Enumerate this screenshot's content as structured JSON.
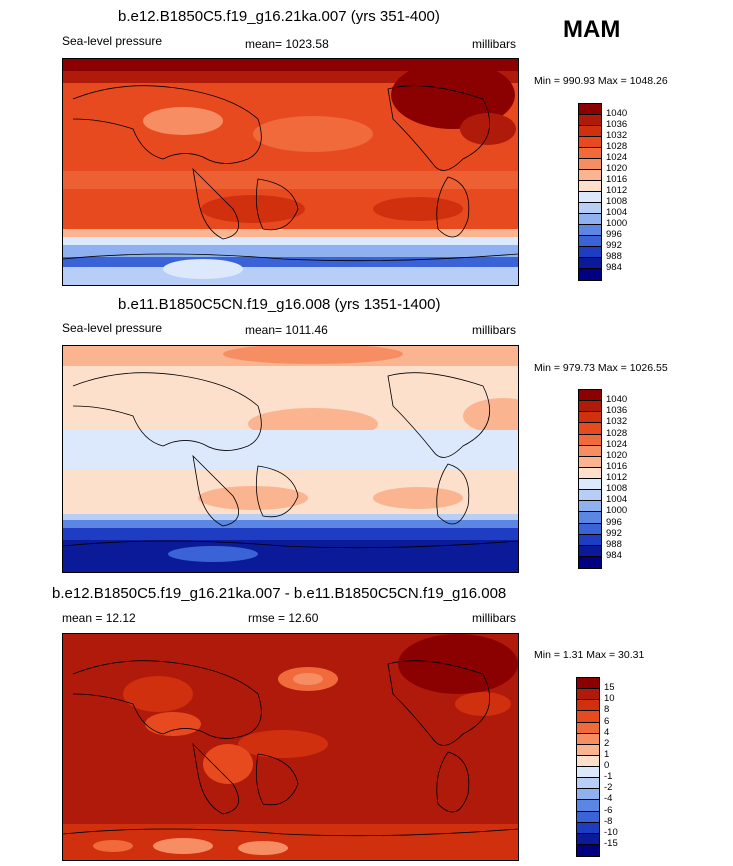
{
  "season": "MAM",
  "panels": [
    {
      "title": "b.e12.B1850C5.f19_g16.21ka.007 (yrs 351-400)",
      "left": "Sea-level pressure",
      "middle": "mean= 1023.58",
      "right": "millibars",
      "minmax": "Min = 990.93 Max = 1048.26",
      "levels": [
        "1040",
        "1036",
        "1032",
        "1028",
        "1024",
        "1020",
        "1016",
        "1012",
        "1008",
        "1004",
        "1000",
        "996",
        "992",
        "988",
        "984"
      ],
      "colors": [
        "#8b0000",
        "#b01a0a",
        "#d1300f",
        "#e84a20",
        "#f06a3c",
        "#f78e63",
        "#fab48f",
        "#fde0cc",
        "#dce8fb",
        "#b7cff6",
        "#8fb1ef",
        "#5b86e4",
        "#3a63d7",
        "#1f3dc2",
        "#0a1a99",
        "#000080"
      ]
    },
    {
      "title": "b.e11.B1850C5CN.f19_g16.008 (yrs 1351-1400)",
      "left": "Sea-level pressure",
      "middle": "mean= 1011.46",
      "right": "millibars",
      "minmax": "Min = 979.73 Max = 1026.55",
      "levels": [
        "1040",
        "1036",
        "1032",
        "1028",
        "1024",
        "1020",
        "1016",
        "1012",
        "1008",
        "1004",
        "1000",
        "996",
        "992",
        "988",
        "984"
      ],
      "colors": [
        "#8b0000",
        "#b01a0a",
        "#d1300f",
        "#e84a20",
        "#f06a3c",
        "#f78e63",
        "#fab48f",
        "#fde0cc",
        "#dce8fb",
        "#b7cff6",
        "#8fb1ef",
        "#5b86e4",
        "#3a63d7",
        "#1f3dc2",
        "#0a1a99",
        "#000080"
      ]
    },
    {
      "title": "b.e12.B1850C5.f19_g16.21ka.007 - b.e11.B1850C5CN.f19_g16.008",
      "left": "mean =  12.12",
      "middle": "rmse =  12.60",
      "right": "millibars",
      "minmax": "Min =   1.31 Max =  30.31",
      "levels": [
        "15",
        "10",
        "8",
        "6",
        "4",
        "2",
        "1",
        "0",
        "-1",
        "-2",
        "-4",
        "-6",
        "-8",
        "-10",
        "-15"
      ],
      "colors": [
        "#8b0000",
        "#b01a0a",
        "#d1300f",
        "#e84a20",
        "#f06a3c",
        "#f78e63",
        "#fab48f",
        "#fde0cc",
        "#dce8fb",
        "#b7cff6",
        "#8fb1ef",
        "#5b86e4",
        "#3a63d7",
        "#1f3dc2",
        "#0a1a99",
        "#000080"
      ]
    }
  ]
}
